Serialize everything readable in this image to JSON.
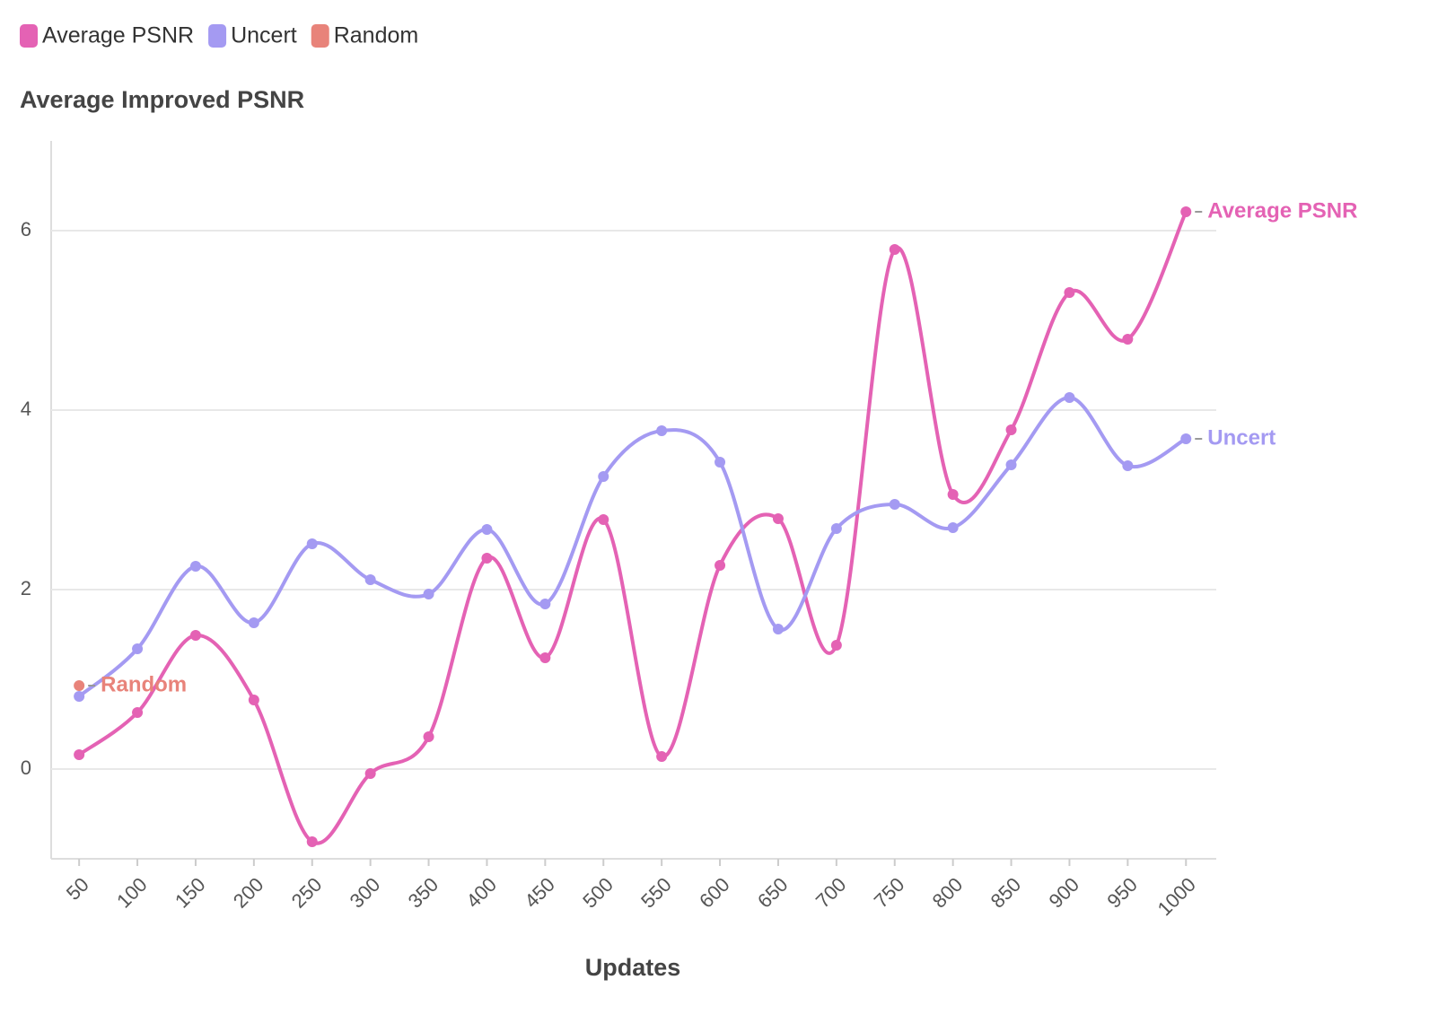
{
  "chart_data": {
    "type": "line",
    "title": "Average Improved PSNR",
    "xlabel": "Updates",
    "x": [
      50,
      100,
      150,
      200,
      250,
      300,
      350,
      400,
      450,
      500,
      550,
      600,
      650,
      700,
      750,
      800,
      850,
      900,
      950,
      1000
    ],
    "series": [
      {
        "name": "Average PSNR",
        "color": "#e462b4",
        "values": [
          0.16,
          0.63,
          1.49,
          0.77,
          -0.81,
          -0.05,
          0.36,
          2.35,
          1.24,
          2.78,
          0.14,
          2.27,
          2.79,
          1.38,
          5.79,
          3.06,
          3.78,
          5.31,
          4.79,
          6.21
        ]
      },
      {
        "name": "Uncert",
        "color": "#a49af2",
        "values": [
          0.81,
          1.34,
          2.26,
          1.63,
          2.51,
          2.11,
          1.95,
          2.67,
          1.84,
          3.26,
          3.77,
          3.42,
          1.56,
          2.68,
          2.95,
          2.69,
          3.39,
          4.14,
          3.38,
          3.68
        ]
      },
      {
        "name": "Random",
        "color": "#e8837a",
        "values": [
          0.93,
          null,
          null,
          null,
          null,
          null,
          null,
          null,
          null,
          null,
          null,
          null,
          null,
          null,
          null,
          null,
          null,
          null,
          null,
          null
        ]
      }
    ],
    "xlim": [
      26,
      1026
    ],
    "xticks": [
      50,
      100,
      150,
      200,
      250,
      300,
      350,
      400,
      450,
      500,
      550,
      600,
      650,
      700,
      750,
      800,
      850,
      900,
      950,
      1000
    ],
    "ylim": [
      -1,
      7
    ],
    "yticks": [
      0,
      2,
      4,
      6
    ],
    "grid": true,
    "smooth": true
  }
}
